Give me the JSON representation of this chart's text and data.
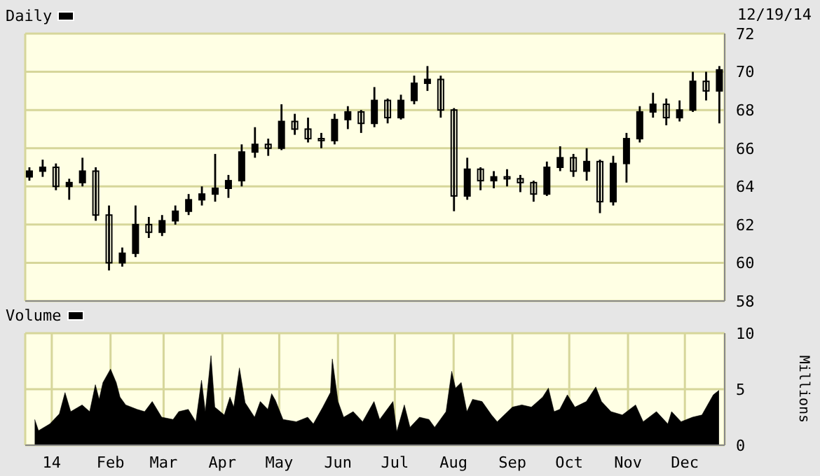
{
  "chart_data": [
    {
      "type": "candlestick",
      "title": "Daily",
      "annotations": [
        "12/19/14"
      ],
      "color": "#000000",
      "x": [
        "2013-12-20",
        "2013-12-27",
        "2014-01-03",
        "2014-01-10",
        "2014-01-17",
        "2014-01-24",
        "2014-01-31",
        "2014-02-07",
        "2014-02-14",
        "2014-02-21",
        "2014-02-28",
        "2014-03-07",
        "2014-03-14",
        "2014-03-21",
        "2014-03-28",
        "2014-04-04",
        "2014-04-11",
        "2014-04-18",
        "2014-04-25",
        "2014-05-02",
        "2014-05-09",
        "2014-05-16",
        "2014-05-23",
        "2014-05-30",
        "2014-06-06",
        "2014-06-13",
        "2014-06-20",
        "2014-06-27",
        "2014-07-04",
        "2014-07-11",
        "2014-07-18",
        "2014-07-25",
        "2014-08-01",
        "2014-08-08",
        "2014-08-15",
        "2014-08-22",
        "2014-08-29",
        "2014-09-05",
        "2014-09-12",
        "2014-09-19",
        "2014-09-26",
        "2014-10-03",
        "2014-10-10",
        "2014-10-17",
        "2014-10-24",
        "2014-10-31",
        "2014-11-07",
        "2014-11-14",
        "2014-11-21",
        "2014-11-28",
        "2014-12-05",
        "2014-12-12",
        "2014-12-19"
      ],
      "ohlc": [
        [
          64.5,
          65,
          64.3,
          64.8
        ],
        [
          64.8,
          65.4,
          64.5,
          65
        ],
        [
          65,
          65.2,
          63.8,
          64
        ],
        [
          64,
          64.4,
          63.3,
          64.2
        ],
        [
          64.2,
          65.5,
          64,
          64.8
        ],
        [
          64.8,
          65,
          62.2,
          62.5
        ],
        [
          62.5,
          63,
          59.6,
          60
        ],
        [
          60,
          60.8,
          59.8,
          60.5
        ],
        [
          60.5,
          63,
          60.3,
          62
        ],
        [
          62,
          62.4,
          61.3,
          61.6
        ],
        [
          61.6,
          62.5,
          61.4,
          62.2
        ],
        [
          62.2,
          63,
          62,
          62.7
        ],
        [
          62.7,
          63.6,
          62.5,
          63.3
        ],
        [
          63.3,
          64,
          63,
          63.6
        ],
        [
          63.6,
          65.7,
          63.2,
          63.9
        ],
        [
          63.9,
          64.6,
          63.4,
          64.3
        ],
        [
          64.3,
          66.2,
          64,
          65.8
        ],
        [
          65.8,
          67.1,
          65.5,
          66.2
        ],
        [
          66.2,
          66.5,
          65.6,
          66
        ],
        [
          66,
          68.3,
          65.9,
          67.4
        ],
        [
          67.4,
          67.8,
          66.7,
          67
        ],
        [
          67,
          67.6,
          66.3,
          66.5
        ],
        [
          66.5,
          66.8,
          66,
          66.4
        ],
        [
          66.4,
          67.8,
          66.2,
          67.5
        ],
        [
          67.5,
          68.2,
          67,
          67.9
        ],
        [
          67.9,
          68,
          66.8,
          67.3
        ],
        [
          67.3,
          69.2,
          67.1,
          68.5
        ],
        [
          68.5,
          68.6,
          67.3,
          67.6
        ],
        [
          67.6,
          68.8,
          67.5,
          68.5
        ],
        [
          68.5,
          69.8,
          68.3,
          69.4
        ],
        [
          69.4,
          70.3,
          69,
          69.6
        ],
        [
          69.6,
          69.8,
          67.6,
          68
        ],
        [
          68,
          68.1,
          62.7,
          63.5
        ],
        [
          63.5,
          65.5,
          63.3,
          64.9
        ],
        [
          64.9,
          65,
          63.8,
          64.3
        ],
        [
          64.3,
          64.8,
          63.9,
          64.5
        ],
        [
          64.5,
          64.9,
          64,
          64.4
        ],
        [
          64.4,
          64.6,
          63.7,
          64.2
        ],
        [
          64.2,
          64.3,
          63.2,
          63.6
        ],
        [
          63.6,
          65.3,
          63.5,
          65
        ],
        [
          65,
          66.1,
          64.8,
          65.5
        ],
        [
          65.5,
          65.7,
          64.5,
          64.8
        ],
        [
          64.8,
          66,
          64.3,
          65.3
        ],
        [
          65.3,
          65.4,
          62.6,
          63.2
        ],
        [
          63.2,
          65.6,
          63,
          65.2
        ],
        [
          65.2,
          66.8,
          64.2,
          66.5
        ],
        [
          66.5,
          68.2,
          66.3,
          67.9
        ],
        [
          67.9,
          68.9,
          67.6,
          68.3
        ],
        [
          68.3,
          68.6,
          67.2,
          67.6
        ],
        [
          67.6,
          68.5,
          67.4,
          68
        ],
        [
          68,
          70,
          67.9,
          69.5
        ],
        [
          69.5,
          70,
          68.5,
          69
        ],
        [
          69,
          70.3,
          67.3,
          70.1
        ]
      ],
      "xlim": [
        "2013-12-18",
        "2014-12-22"
      ],
      "xticks": [
        {
          "value": "2014-01-01",
          "label": null
        },
        {
          "value": "2014-02-01",
          "label": null
        },
        {
          "value": "2014-03-01",
          "label": null
        },
        {
          "value": "2014-04-01",
          "label": null
        },
        {
          "value": "2014-05-01",
          "label": null
        },
        {
          "value": "2014-06-01",
          "label": null
        },
        {
          "value": "2014-07-01",
          "label": null
        },
        {
          "value": "2014-08-01",
          "label": null
        },
        {
          "value": "2014-09-01",
          "label": null
        },
        {
          "value": "2014-10-01",
          "label": null
        },
        {
          "value": "2014-11-01",
          "label": null
        },
        {
          "value": "2014-12-01",
          "label": null
        }
      ],
      "ylim": [
        58,
        72
      ],
      "yticks": [
        58,
        60,
        62,
        64,
        66,
        68,
        70,
        72
      ],
      "grid": true,
      "tick_labels": "y"
    },
    {
      "type": "area",
      "title": "Volume",
      "ylabel": "Millions",
      "color": "#000000",
      "x": [
        "2013-12-23",
        "2013-12-25",
        "2013-12-31",
        "2014-01-05",
        "2014-01-08",
        "2014-01-11",
        "2014-01-17",
        "2014-01-21",
        "2014-01-24",
        "2014-01-26",
        "2014-01-28",
        "2014-02-01",
        "2014-02-04",
        "2014-02-06",
        "2014-02-09",
        "2014-02-15",
        "2014-02-19",
        "2014-02-23",
        "2014-02-28",
        "2014-03-06",
        "2014-03-09",
        "2014-03-14",
        "2014-03-18",
        "2014-03-21",
        "2014-03-23",
        "2014-03-26",
        "2014-03-28",
        "2014-04-02",
        "2014-04-05",
        "2014-04-07",
        "2014-04-10",
        "2014-04-13",
        "2014-04-18",
        "2014-04-21",
        "2014-04-25",
        "2014-04-27",
        "2014-04-29",
        "2014-05-03",
        "2014-05-10",
        "2014-05-16",
        "2014-05-19",
        "2014-05-24",
        "2014-05-28",
        "2014-05-29",
        "2014-06-01",
        "2014-06-04",
        "2014-06-09",
        "2014-06-14",
        "2014-06-20",
        "2014-06-23",
        "2014-06-30",
        "2014-07-02",
        "2014-07-06",
        "2014-07-09",
        "2014-07-14",
        "2014-07-19",
        "2014-07-22",
        "2014-07-28",
        "2014-07-31",
        "2014-08-02",
        "2014-08-05",
        "2014-08-08",
        "2014-08-11",
        "2014-08-16",
        "2014-08-21",
        "2014-08-24",
        "2014-09-01",
        "2014-09-06",
        "2014-09-11",
        "2014-09-17",
        "2014-09-20",
        "2014-09-23",
        "2014-09-26",
        "2014-09-30",
        "2014-10-04",
        "2014-10-10",
        "2014-10-15",
        "2014-10-18",
        "2014-10-23",
        "2014-10-29",
        "2014-11-05",
        "2014-11-09",
        "2014-11-16",
        "2014-11-22",
        "2014-11-24",
        "2014-11-29",
        "2014-12-05",
        "2014-12-10",
        "2014-12-16",
        "2014-12-19"
      ],
      "values": [
        2.3,
        1.3,
        1.9,
        2.8,
        4.7,
        3,
        3.6,
        3,
        5.4,
        4.1,
        5.6,
        6.8,
        5.6,
        4.3,
        3.6,
        3.2,
        3,
        3.9,
        2.5,
        2.3,
        3,
        3.2,
        2.1,
        5.8,
        3,
        8,
        3.4,
        2.7,
        4.3,
        3.4,
        6.9,
        3.8,
        2.5,
        3.9,
        3.2,
        4.6,
        4,
        2.3,
        2.1,
        2.5,
        1.9,
        3.4,
        4.7,
        7.7,
        3.9,
        2.5,
        3,
        2.1,
        3.9,
        2.3,
        3.9,
        1.2,
        3.6,
        1.6,
        2.5,
        2.3,
        1.6,
        3,
        6.6,
        5.1,
        5.6,
        3,
        4.1,
        3.9,
        2.7,
        2.1,
        3.4,
        3.6,
        3.4,
        4.3,
        5.1,
        3,
        3.2,
        4.5,
        3.4,
        3.9,
        5.2,
        3.9,
        3,
        2.7,
        3.6,
        2.1,
        3,
        1.9,
        3,
        2.1,
        2.5,
        2.7,
        4.5,
        4.9
      ],
      "xlim": [
        "2013-12-18",
        "2014-12-22"
      ],
      "xticks": [
        {
          "value": "2014-01-01",
          "label": "14"
        },
        {
          "value": "2014-02-01",
          "label": "Feb"
        },
        {
          "value": "2014-03-01",
          "label": "Mar"
        },
        {
          "value": "2014-04-01",
          "label": "Apr"
        },
        {
          "value": "2014-05-01",
          "label": "May"
        },
        {
          "value": "2014-06-01",
          "label": "Jun"
        },
        {
          "value": "2014-07-01",
          "label": "Jul"
        },
        {
          "value": "2014-08-01",
          "label": "Aug"
        },
        {
          "value": "2014-09-01",
          "label": "Sep"
        },
        {
          "value": "2014-10-01",
          "label": "Oct"
        },
        {
          "value": "2014-11-01",
          "label": "Nov"
        },
        {
          "value": "2014-12-01",
          "label": "Dec"
        }
      ],
      "ylim": [
        0,
        10
      ],
      "yticks": [
        0,
        5,
        10
      ],
      "grid": true
    }
  ]
}
